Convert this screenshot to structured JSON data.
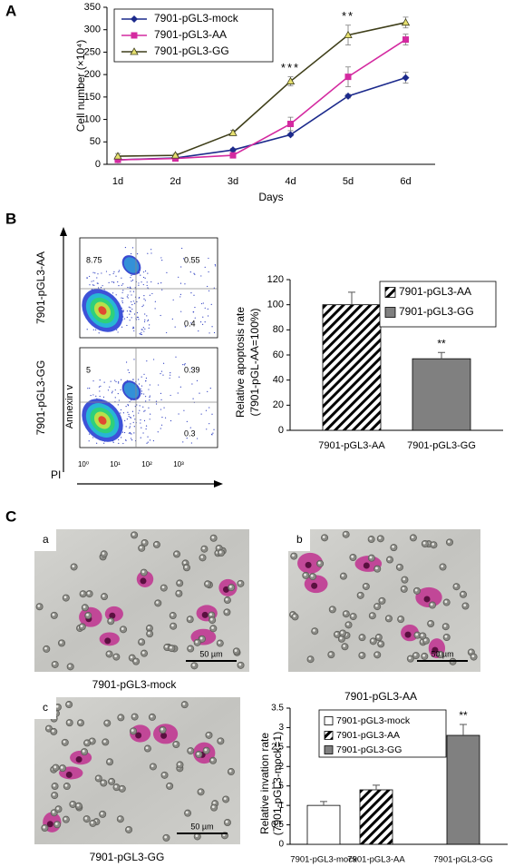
{
  "panels": [
    "A",
    "B",
    "C"
  ],
  "chart_data": [
    {
      "type": "line",
      "xlabel": "Days",
      "ylabel": "Cell number (×10⁴)",
      "categories": [
        "1d",
        "2d",
        "3d",
        "4d",
        "5d",
        "6d"
      ],
      "series": [
        {
          "name": "7901-pGL3-mock",
          "color": "#1c2a8c",
          "marker": "diamond",
          "marker_color": "#1c2a8c",
          "values": [
            10,
            14,
            32,
            66,
            152,
            193
          ],
          "errors": [
            3,
            2,
            3,
            3,
            4,
            12
          ]
        },
        {
          "name": "7901-pGL3-AA",
          "color": "#d42aa0",
          "marker": "square",
          "marker_color": "#d42aa0",
          "values": [
            10,
            13,
            20,
            90,
            195,
            278
          ],
          "errors": [
            2,
            2,
            3,
            15,
            22,
            12
          ]
        },
        {
          "name": "7901-pGL3-GG",
          "color": "#3f3f1a",
          "marker": "triangle",
          "marker_color": "#e6e070",
          "values": [
            18,
            20,
            70,
            185,
            288,
            316
          ],
          "errors": [
            6,
            4,
            6,
            10,
            22,
            12
          ]
        }
      ],
      "annotations": [
        {
          "text": "***",
          "x": "4d"
        },
        {
          "text": "**",
          "x": "5d"
        }
      ],
      "ylim": [
        0,
        350
      ],
      "yticks": [
        0,
        50,
        100,
        150,
        200,
        250,
        300,
        350
      ],
      "legend": "upper left"
    },
    {
      "type": "bar",
      "ylabel": [
        "Relative apoptosis rate",
        "(7901-pGL-AA=100%)"
      ],
      "categories": [
        "7901-pGL3-AA",
        "7901-pGL3-GG"
      ],
      "values": [
        100,
        57
      ],
      "errors": [
        10,
        5
      ],
      "colors": [
        "#ffffff",
        "#808080"
      ],
      "hatch": [
        true,
        false
      ],
      "annotations": [
        {
          "text": "**",
          "x": "7901-pGL3-GG"
        }
      ],
      "ylim": [
        0,
        120
      ],
      "yticks": [
        0,
        20,
        40,
        60,
        80,
        100,
        120
      ],
      "legend": "upper right"
    },
    {
      "type": "bar",
      "ylabel": [
        "Relative invation rate",
        "(7901-pGL3-mock=1)"
      ],
      "categories": [
        "7901-pGL3-mock",
        "7901-pGL3-AA",
        "7901-pGL3-GG"
      ],
      "values": [
        1.0,
        1.4,
        2.8
      ],
      "errors": [
        0.1,
        0.12,
        0.28
      ],
      "colors": [
        "#ffffff",
        "#ffffff",
        "#808080"
      ],
      "hatch": [
        false,
        true,
        false
      ],
      "annotations": [
        {
          "text": "**",
          "x": "7901-pGL3-GG"
        }
      ],
      "ylim": [
        0,
        3.5
      ],
      "yticks": [
        0,
        0.5,
        1,
        1.5,
        2,
        2.5,
        3,
        3.5
      ],
      "legend": "upper right"
    }
  ],
  "flow_cytometry": {
    "x_label": "PI",
    "y_label": "Annexin v",
    "x_ticks": [
      "10⁰",
      "10¹",
      "10²",
      "10³"
    ],
    "plots": [
      {
        "label": "7901-pGL3-AA",
        "quadrants": [
          8.75,
          0.55,
          0.4
        ]
      },
      {
        "label": "7901-pGL3-GG",
        "quadrants": [
          5,
          0.39,
          0.3
        ]
      }
    ]
  },
  "micrographs": [
    {
      "label": "a",
      "caption": "7901-pGL3-mock",
      "scale_bar": "50 µm"
    },
    {
      "label": "b",
      "caption": "7901-pGL3-AA",
      "scale_bar": "50 µm"
    },
    {
      "label": "c",
      "caption": "7901-pGL3-GG",
      "scale_bar": "50 µm"
    }
  ]
}
